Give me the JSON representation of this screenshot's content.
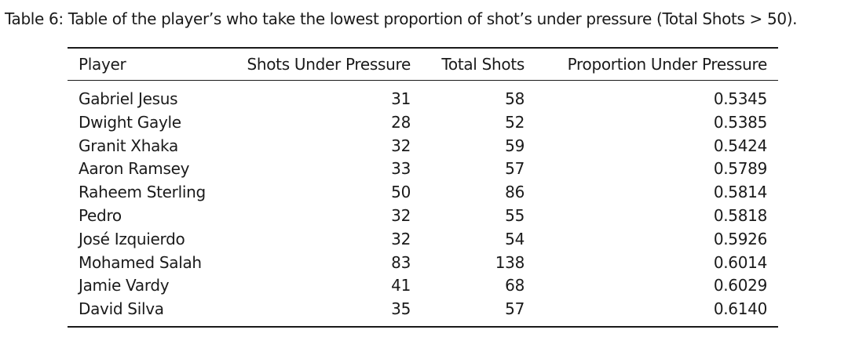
{
  "caption": "Table 6: Table of the player’s who take the lowest proportion of shot’s under pressure (Total Shots > 50).",
  "table": {
    "headers": {
      "player": "Player",
      "shots_under_pressure": "Shots Under Pressure",
      "total_shots": "Total Shots",
      "proportion": "Proportion Under Pressure"
    },
    "rows": [
      {
        "player": "Gabriel Jesus",
        "sup": "31",
        "total": "58",
        "prop": "0.5345"
      },
      {
        "player": "Dwight Gayle",
        "sup": "28",
        "total": "52",
        "prop": "0.5385"
      },
      {
        "player": "Granit Xhaka",
        "sup": "32",
        "total": "59",
        "prop": "0.5424"
      },
      {
        "player": "Aaron Ramsey",
        "sup": "33",
        "total": "57",
        "prop": "0.5789"
      },
      {
        "player": "Raheem Sterling",
        "sup": "50",
        "total": "86",
        "prop": "0.5814"
      },
      {
        "player": "Pedro",
        "sup": "32",
        "total": "55",
        "prop": "0.5818"
      },
      {
        "player": "José Izquierdo",
        "sup": "32",
        "total": "54",
        "prop": "0.5926"
      },
      {
        "player": "Mohamed Salah",
        "sup": "83",
        "total": "138",
        "prop": "0.6014"
      },
      {
        "player": "Jamie Vardy",
        "sup": "41",
        "total": "68",
        "prop": "0.6029"
      },
      {
        "player": "David Silva",
        "sup": "35",
        "total": "57",
        "prop": "0.6140"
      }
    ]
  }
}
